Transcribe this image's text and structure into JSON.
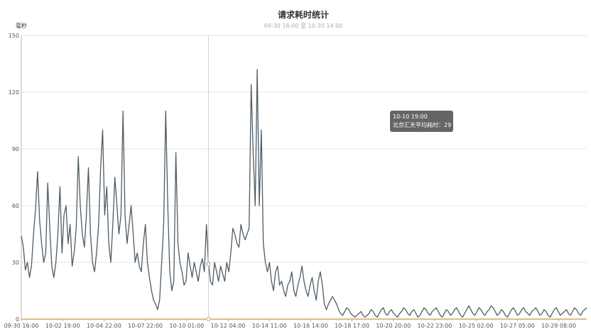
{
  "chart_data": {
    "type": "line",
    "title": "请求耗时统计",
    "subtitle": "09-30 16:00 至 10-30 14:00",
    "ylabel": "毫秒",
    "ylim": [
      0,
      150
    ],
    "yticks": [
      0,
      30,
      60,
      90,
      120,
      150
    ],
    "x_tick_labels": [
      "09-30 16:00",
      "10-02 19:00",
      "10-04 22:00",
      "10-07 22:00",
      "10-10 01:00",
      "10-12 04:00",
      "10-14 11:00",
      "10-16 14:00",
      "10-18 17:00",
      "10-20 20:00",
      "10-22 23:00",
      "10-25 02:00",
      "10-27 05:00",
      "10-29 08:00"
    ],
    "grid": true,
    "series": [
      {
        "color": "#4e5c66",
        "values": [
          44,
          38,
          26,
          30,
          22,
          28,
          45,
          58,
          78,
          52,
          40,
          30,
          35,
          72,
          48,
          28,
          22,
          30,
          45,
          70,
          35,
          55,
          60,
          40,
          50,
          28,
          35,
          48,
          86,
          60,
          45,
          38,
          55,
          80,
          45,
          30,
          25,
          35,
          50,
          80,
          100,
          55,
          70,
          40,
          30,
          50,
          75,
          60,
          45,
          55,
          110,
          55,
          40,
          50,
          60,
          45,
          30,
          35,
          28,
          25,
          40,
          50,
          30,
          22,
          15,
          10,
          8,
          5,
          10,
          30,
          50,
          110,
          60,
          25,
          15,
          20,
          88,
          40,
          30,
          25,
          18,
          20,
          35,
          28,
          22,
          30,
          25,
          20,
          28,
          32,
          25,
          50,
          30,
          20,
          18,
          30,
          25,
          20,
          28,
          24,
          20,
          30,
          25,
          35,
          48,
          45,
          40,
          38,
          50,
          45,
          42,
          45,
          48,
          124,
          88,
          60,
          132,
          60,
          100,
          40,
          30,
          25,
          30,
          20,
          15,
          25,
          28,
          18,
          20,
          15,
          12,
          18,
          20,
          25,
          15,
          12,
          18,
          22,
          28,
          20,
          15,
          12,
          18,
          22,
          15,
          10,
          20,
          25,
          18,
          8,
          5,
          8,
          10,
          12,
          10,
          8,
          5,
          3,
          2,
          4,
          6,
          5,
          3,
          2,
          1,
          2,
          3,
          4,
          2,
          1,
          2,
          3,
          5,
          4,
          2,
          1,
          3,
          5,
          6,
          3,
          2,
          4,
          5,
          3,
          2,
          1,
          3,
          4,
          6,
          5,
          3,
          2,
          4,
          5,
          3,
          1,
          2,
          4,
          6,
          5,
          3,
          2,
          4,
          5,
          6,
          4,
          2,
          1,
          3,
          5,
          4,
          2,
          3,
          5,
          6,
          4,
          2,
          1,
          3,
          5,
          7,
          5,
          3,
          2,
          4,
          6,
          5,
          3,
          2,
          4,
          5,
          7,
          6,
          4,
          2,
          3,
          5,
          4,
          2,
          1,
          3,
          5,
          6,
          4,
          2,
          3,
          5,
          6,
          4,
          3,
          2,
          4,
          5,
          6,
          4,
          2,
          3,
          5,
          4,
          2,
          1,
          3,
          5,
          6,
          4,
          2,
          3,
          4,
          5,
          3,
          2,
          4,
          6,
          5,
          3,
          2,
          4,
          5,
          6
        ]
      }
    ],
    "cursor_x_label": "10-10 19:00",
    "tooltip": {
      "line1": "10-10 19:00",
      "line2": "北京汇天平均耗时：29"
    }
  }
}
